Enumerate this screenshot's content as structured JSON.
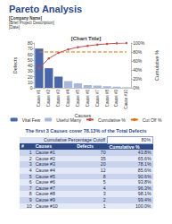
{
  "header": {
    "title": "Pareto Analysis",
    "lines": [
      "[Company Name]",
      "[Brief Project Description]",
      "[Date]"
    ]
  },
  "chart_data": {
    "type": "pareto",
    "title": "[Chart Title]",
    "x_label": "Causes",
    "y_label": "Defects",
    "y2_label": "Cumulative %",
    "categories": [
      "Cause #1",
      "Cause #2",
      "Cause #3",
      "Cause #4",
      "Cause #5",
      "Cause #6",
      "Cause #7",
      "Cause #8",
      "Cause #9",
      "Cause #10"
    ],
    "series": [
      {
        "name": "Vital Few",
        "type": "bar",
        "color": "#4a66a8",
        "values": [
          70,
          35,
          20,
          null,
          null,
          null,
          null,
          null,
          null,
          null
        ]
      },
      {
        "name": "Useful Many",
        "type": "bar",
        "color": "#a8b7dc",
        "values": [
          null,
          null,
          null,
          12,
          8,
          5,
          4,
          3,
          2,
          1
        ]
      },
      {
        "name": "Cumulative %",
        "type": "line",
        "axis": "y2",
        "color": "#c0504d",
        "marker": "circle",
        "values": [
          43.75,
          65.63,
          78.13,
          85.63,
          90.63,
          93.75,
          96.25,
          98.13,
          99.38,
          100
        ]
      },
      {
        "name": "Cut Off %",
        "type": "line",
        "axis": "y2",
        "color": "#e46c0a",
        "line_style": "dashed",
        "values": [
          80,
          80,
          80,
          80,
          80,
          80,
          80,
          80,
          80,
          80
        ]
      }
    ],
    "ylim": [
      0,
      80
    ],
    "yticks": [
      0,
      10,
      20,
      30,
      40,
      50,
      60,
      70,
      80
    ],
    "y2lim": [
      0,
      100
    ],
    "y2ticks": [
      {
        "value": 0,
        "label": "0%"
      },
      {
        "value": 20,
        "label": "20%"
      },
      {
        "value": 40,
        "label": "40%"
      },
      {
        "value": 60,
        "label": "60%"
      },
      {
        "value": 80,
        "label": "80%"
      },
      {
        "value": 100,
        "label": "100%"
      }
    ],
    "legend": "bottom"
  },
  "summary": "The first 3 Causes cover 78.13% of the Total Defects",
  "table": {
    "cutoff": [
      "Cumulative Percentage Cutoff",
      "80%"
    ],
    "columns": [
      "#",
      "Causes",
      "Defects",
      "Cumulative %"
    ],
    "rows": [
      [
        1,
        "Cause #1",
        70,
        "43.8%"
      ],
      [
        2,
        "Cause #2",
        35,
        "65.6%"
      ],
      [
        3,
        "Cause #3",
        20,
        "78.1%"
      ],
      [
        4,
        "Cause #4",
        12,
        "85.6%"
      ],
      [
        5,
        "Cause #5",
        8,
        "90.6%"
      ],
      [
        6,
        "Cause #6",
        5,
        "93.8%"
      ],
      [
        7,
        "Cause #7",
        4,
        "96.3%"
      ],
      [
        8,
        "Cause #8",
        3,
        "98.1%"
      ],
      [
        9,
        "Cause #9",
        2,
        "99.4%"
      ],
      [
        10,
        "Cause #10",
        1,
        "100.0%"
      ]
    ]
  }
}
